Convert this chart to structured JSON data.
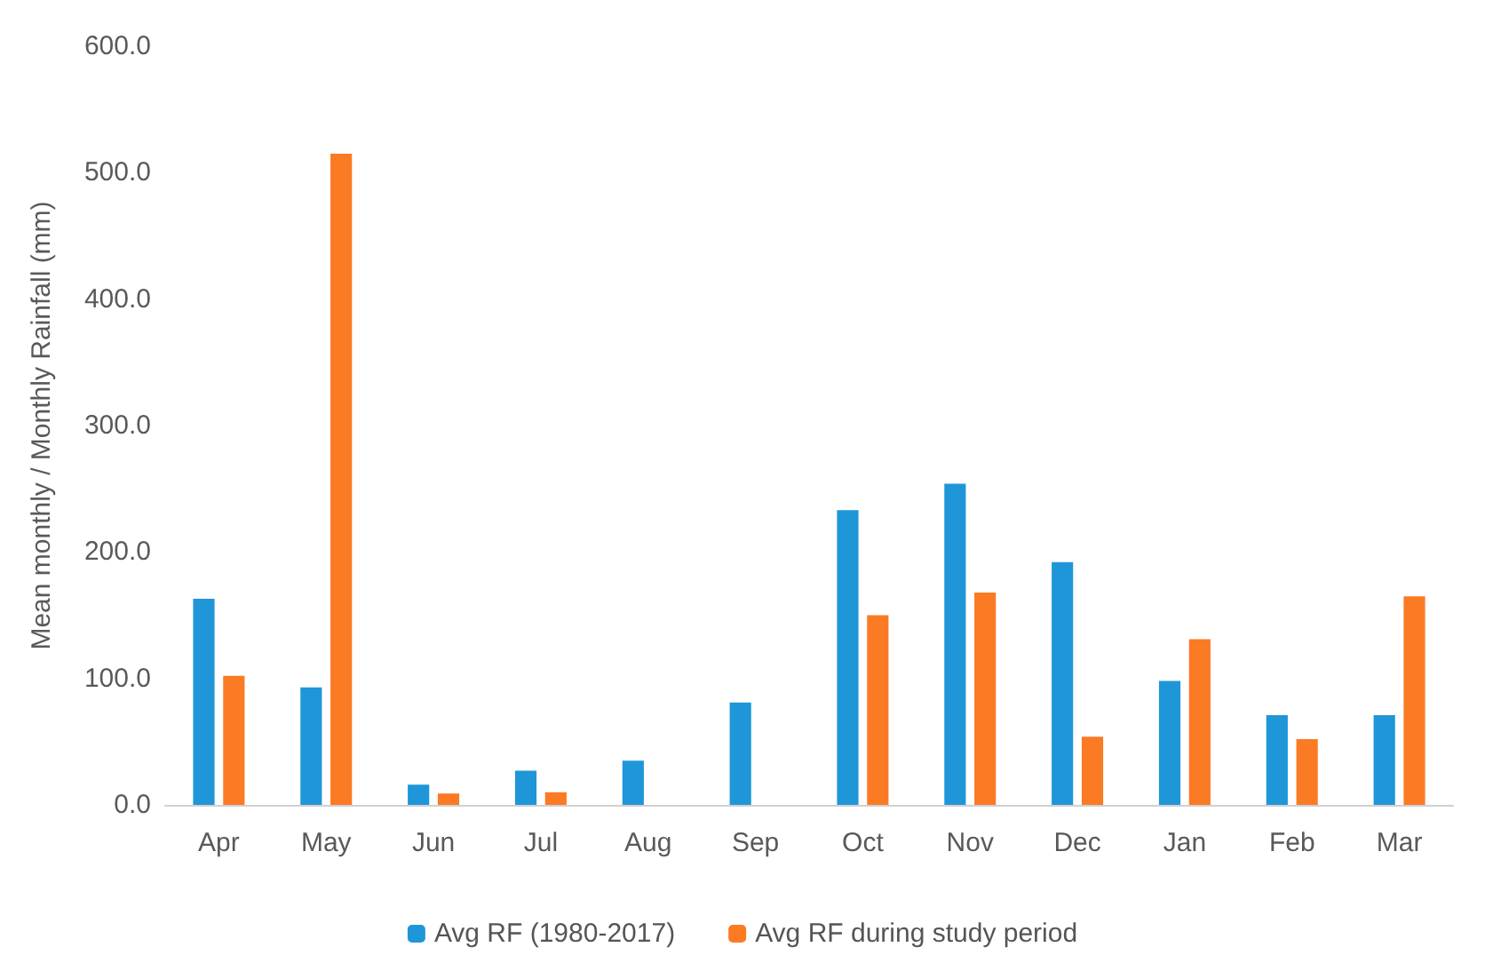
{
  "chart_data": {
    "type": "bar",
    "ylabel": "Mean monthly / Monthly Rainfall (mm)",
    "categories": [
      "Apr",
      "May",
      "Jun",
      "Jul",
      "Aug",
      "Sep",
      "Oct",
      "Nov",
      "Dec",
      "Jan",
      "Feb",
      "Mar"
    ],
    "series": [
      {
        "name": "Avg RF (1980-2017)",
        "color": "#1f96d8",
        "values": [
          163,
          93,
          16,
          27,
          35,
          81,
          233,
          254,
          192,
          98,
          71,
          71
        ]
      },
      {
        "name": "Avg RF during study period",
        "color": "#fb7a24",
        "values": [
          102,
          515,
          9,
          10,
          0,
          0,
          150,
          168,
          54,
          131,
          52,
          165
        ]
      }
    ],
    "ylim": [
      0,
      600
    ],
    "yticks": [
      {
        "value": 0,
        "label": "0.0"
      },
      {
        "value": 100,
        "label": "100.0"
      },
      {
        "value": 200,
        "label": "200.0"
      },
      {
        "value": 300,
        "label": "300.0"
      },
      {
        "value": 400,
        "label": "400.0"
      },
      {
        "value": 500,
        "label": "500.0"
      },
      {
        "value": 600,
        "label": "600.0"
      }
    ],
    "grid": false,
    "legend": "bottom"
  }
}
